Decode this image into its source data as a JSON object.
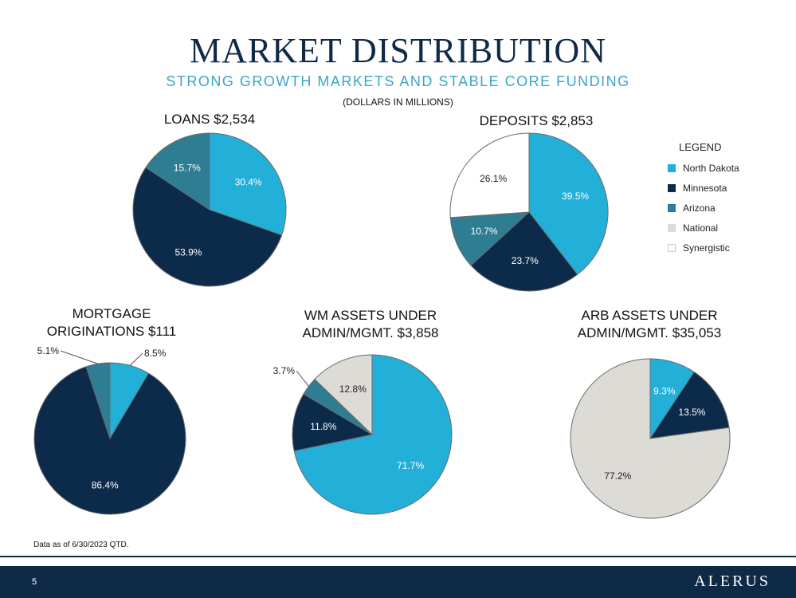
{
  "header": {
    "title": "MARKET DISTRIBUTION",
    "subtitle": "STRONG GROWTH MARKETS AND STABLE CORE FUNDING",
    "units": "(DOLLARS IN MILLIONS)"
  },
  "colors": {
    "north_dakota": "#22b0d8",
    "minnesota": "#0c2b4a",
    "arizona": "#2f7d92",
    "national": "#dddbd6",
    "synergistic": "#ffffff",
    "title": "#0f2a47",
    "subtitle": "#3aa6c8"
  },
  "legend": {
    "title": "LEGEND",
    "items": [
      {
        "label": "North Dakota",
        "color": "#22b0d8"
      },
      {
        "label": "Minnesota",
        "color": "#0c2b4a"
      },
      {
        "label": "Arizona",
        "color": "#2f7d92"
      },
      {
        "label": "National",
        "color": "#dddbd6"
      },
      {
        "label": "Synergistic",
        "color": "#ffffff"
      }
    ]
  },
  "chart_data": [
    {
      "type": "pie",
      "title": "LOANS $2,534",
      "slices": [
        {
          "name": "North Dakota",
          "value": 30.4,
          "label": "30.4%"
        },
        {
          "name": "Minnesota",
          "value": 53.9,
          "label": "53.9%"
        },
        {
          "name": "Arizona",
          "value": 15.7,
          "label": "15.7%"
        }
      ]
    },
    {
      "type": "pie",
      "title": "DEPOSITS $2,853",
      "slices": [
        {
          "name": "North Dakota",
          "value": 39.5,
          "label": "39.5%"
        },
        {
          "name": "Minnesota",
          "value": 23.7,
          "label": "23.7%"
        },
        {
          "name": "Arizona",
          "value": 10.7,
          "label": "10.7%"
        },
        {
          "name": "Synergistic",
          "value": 26.1,
          "label": "26.1%"
        }
      ]
    },
    {
      "type": "pie",
      "title_lines": [
        "MORTGAGE",
        "ORIGINATIONS $111"
      ],
      "slices": [
        {
          "name": "North Dakota",
          "value": 8.5,
          "label": "8.5%"
        },
        {
          "name": "Minnesota",
          "value": 86.4,
          "label": "86.4%"
        },
        {
          "name": "Arizona",
          "value": 5.1,
          "label": "5.1%"
        }
      ]
    },
    {
      "type": "pie",
      "title_lines": [
        "WM ASSETS UNDER",
        "ADMIN/MGMT. $3,858"
      ],
      "slices": [
        {
          "name": "North Dakota",
          "value": 71.7,
          "label": "71.7%"
        },
        {
          "name": "Minnesota",
          "value": 11.8,
          "label": "11.8%"
        },
        {
          "name": "Arizona",
          "value": 3.7,
          "label": "3.7%"
        },
        {
          "name": "National",
          "value": 12.8,
          "label": "12.8%"
        }
      ]
    },
    {
      "type": "pie",
      "title_lines": [
        "ARB ASSETS UNDER",
        "ADMIN/MGMT. $35,053"
      ],
      "slices": [
        {
          "name": "North Dakota",
          "value": 9.3,
          "label": "9.3%"
        },
        {
          "name": "Minnesota",
          "value": 13.5,
          "label": "13.5%"
        },
        {
          "name": "National",
          "value": 77.2,
          "label": "77.2%"
        }
      ]
    }
  ],
  "footnote": "Data as of 6/30/2023 QTD.",
  "footer": {
    "page_number": "5",
    "logo_text": "ALERUS"
  }
}
